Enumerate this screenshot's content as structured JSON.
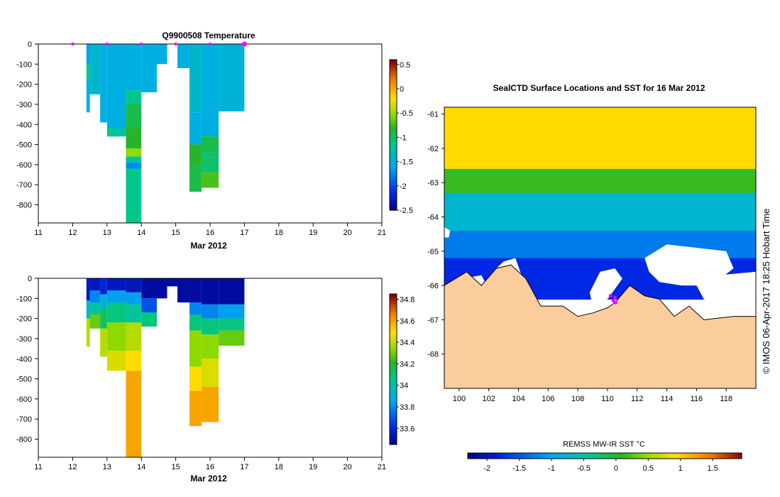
{
  "chart_data": [
    {
      "id": "temperature",
      "type": "heatmap",
      "title": "Q9900508  Temperature",
      "xlabel": "Mar 2012",
      "ylabel": "",
      "xlim": [
        11,
        21
      ],
      "ylim": [
        -890,
        0
      ],
      "x_ticks": [
        "11",
        "12",
        "13",
        "14",
        "15",
        "16",
        "17",
        "18",
        "19",
        "20",
        "21"
      ],
      "y_ticks": [
        "0",
        "-100",
        "-200",
        "-300",
        "-400",
        "-500",
        "-600",
        "-700",
        "-800"
      ],
      "colorbar": {
        "min": -2.5,
        "max": 0.6,
        "ticks": [
          "0.5",
          "0",
          "-0.5",
          "-1",
          "-1.5",
          "-2",
          "-2.5"
        ]
      },
      "profile_markers_x": [
        12,
        13,
        14,
        15,
        16,
        17
      ],
      "profiles": [
        {
          "x0": 12.4,
          "x1": 12.5,
          "depth": 340,
          "layers": [
            [
              0,
              100,
              -1.6
            ],
            [
              100,
              180,
              -1.1
            ],
            [
              180,
              340,
              -1.5
            ]
          ]
        },
        {
          "x0": 12.5,
          "x1": 12.8,
          "depth": 250,
          "layers": [
            [
              0,
              250,
              -1.4
            ]
          ]
        },
        {
          "x0": 12.8,
          "x1": 13.0,
          "depth": 390,
          "layers": [
            [
              0,
              390,
              -1.5
            ]
          ]
        },
        {
          "x0": 13.0,
          "x1": 13.2,
          "depth": 460,
          "layers": [
            [
              0,
              420,
              -1.5
            ],
            [
              420,
              460,
              -1.1
            ]
          ]
        },
        {
          "x0": 13.2,
          "x1": 13.55,
          "depth": 460,
          "layers": [
            [
              0,
              420,
              -1.5
            ],
            [
              420,
              460,
              -1.2
            ]
          ]
        },
        {
          "x0": 13.55,
          "x1": 14.0,
          "depth": 890,
          "layers": [
            [
              0,
              230,
              -1.5
            ],
            [
              230,
              300,
              -1.1
            ],
            [
              300,
              420,
              -0.9
            ],
            [
              420,
              520,
              -0.8
            ],
            [
              520,
              560,
              -0.5
            ],
            [
              560,
              590,
              -1.2
            ],
            [
              590,
              620,
              -1.7
            ],
            [
              620,
              890,
              -1.1
            ]
          ]
        },
        {
          "x0": 14.0,
          "x1": 14.45,
          "depth": 240,
          "layers": [
            [
              0,
              240,
              -1.5
            ]
          ]
        },
        {
          "x0": 14.45,
          "x1": 14.75,
          "depth": 100,
          "layers": [
            [
              0,
              100,
              -1.5
            ]
          ]
        },
        {
          "x0": 15.05,
          "x1": 15.4,
          "depth": 120,
          "layers": [
            [
              0,
              120,
              -1.5
            ]
          ]
        },
        {
          "x0": 15.4,
          "x1": 15.75,
          "depth": 735,
          "layers": [
            [
              0,
              340,
              -1.4
            ],
            [
              340,
              500,
              -1.5
            ],
            [
              500,
              600,
              -0.8
            ],
            [
              600,
              735,
              -0.9
            ]
          ]
        },
        {
          "x0": 15.75,
          "x1": 16.25,
          "depth": 715,
          "layers": [
            [
              0,
              330,
              -1.5
            ],
            [
              330,
              460,
              -1.5
            ],
            [
              460,
              540,
              -0.9
            ],
            [
              540,
              640,
              -1.0
            ],
            [
              640,
              715,
              -0.7
            ]
          ]
        },
        {
          "x0": 16.25,
          "x1": 17.0,
          "depth": 335,
          "layers": [
            [
              0,
              335,
              -1.45
            ]
          ]
        }
      ]
    },
    {
      "id": "salinity",
      "type": "heatmap",
      "title": "",
      "xlabel": "Mar 2012",
      "ylabel": "",
      "xlim": [
        11,
        21
      ],
      "ylim": [
        -890,
        0
      ],
      "x_ticks": [
        "11",
        "12",
        "13",
        "14",
        "15",
        "16",
        "17",
        "18",
        "19",
        "20",
        "21"
      ],
      "y_ticks": [
        "0",
        "-100",
        "-200",
        "-300",
        "-400",
        "-500",
        "-600",
        "-700",
        "-800"
      ],
      "colorbar": {
        "min": 33.45,
        "max": 34.85,
        "ticks": [
          "34.8",
          "34.6",
          "34.4",
          "34.2",
          "34",
          "33.8",
          "33.6"
        ]
      },
      "profiles": [
        {
          "x0": 12.4,
          "x1": 12.5,
          "depth": 340,
          "layers": [
            [
              0,
              110,
              33.55
            ],
            [
              110,
              200,
              33.95
            ],
            [
              200,
              340,
              34.4
            ]
          ]
        },
        {
          "x0": 12.5,
          "x1": 12.8,
          "depth": 250,
          "layers": [
            [
              0,
              60,
              33.55
            ],
            [
              60,
              120,
              33.8
            ],
            [
              120,
              180,
              34.05
            ],
            [
              180,
              250,
              34.3
            ]
          ]
        },
        {
          "x0": 12.8,
          "x1": 13.0,
          "depth": 390,
          "layers": [
            [
              0,
              80,
              33.6
            ],
            [
              80,
              150,
              33.9
            ],
            [
              150,
              250,
              34.15
            ],
            [
              250,
              390,
              34.4
            ]
          ]
        },
        {
          "x0": 13.0,
          "x1": 13.55,
          "depth": 460,
          "layers": [
            [
              0,
              60,
              33.55
            ],
            [
              60,
              120,
              33.85
            ],
            [
              120,
              220,
              34.1
            ],
            [
              220,
              360,
              34.35
            ],
            [
              360,
              460,
              34.45
            ]
          ]
        },
        {
          "x0": 13.55,
          "x1": 14.0,
          "depth": 890,
          "layers": [
            [
              0,
              70,
              33.55
            ],
            [
              70,
              130,
              33.85
            ],
            [
              130,
              220,
              34.05
            ],
            [
              220,
              360,
              34.4
            ],
            [
              360,
              460,
              34.5
            ],
            [
              460,
              890,
              34.6
            ]
          ]
        },
        {
          "x0": 14.0,
          "x1": 14.45,
          "depth": 240,
          "layers": [
            [
              0,
              100,
              33.5
            ],
            [
              100,
              170,
              33.7
            ],
            [
              170,
              240,
              34.1
            ]
          ]
        },
        {
          "x0": 14.45,
          "x1": 14.75,
          "depth": 100,
          "layers": [
            [
              0,
              100,
              33.5
            ]
          ]
        },
        {
          "x0": 14.75,
          "x1": 15.05,
          "depth": 40,
          "layers": [
            [
              0,
              40,
              33.5
            ]
          ]
        },
        {
          "x0": 15.05,
          "x1": 15.4,
          "depth": 120,
          "layers": [
            [
              0,
              120,
              33.5
            ]
          ]
        },
        {
          "x0": 15.4,
          "x1": 15.75,
          "depth": 735,
          "layers": [
            [
              0,
              120,
              33.5
            ],
            [
              120,
              180,
              33.8
            ],
            [
              180,
              260,
              34.1
            ],
            [
              260,
              440,
              34.35
            ],
            [
              440,
              560,
              34.5
            ],
            [
              560,
              735,
              34.6
            ]
          ]
        },
        {
          "x0": 15.75,
          "x1": 16.25,
          "depth": 715,
          "layers": [
            [
              0,
              130,
              33.5
            ],
            [
              130,
              200,
              33.8
            ],
            [
              200,
              280,
              34.1
            ],
            [
              280,
              400,
              34.35
            ],
            [
              400,
              540,
              34.45
            ],
            [
              540,
              715,
              34.6
            ]
          ]
        },
        {
          "x0": 16.25,
          "x1": 17.0,
          "depth": 335,
          "layers": [
            [
              0,
              130,
              33.5
            ],
            [
              130,
              200,
              33.85
            ],
            [
              200,
              260,
              34.1
            ],
            [
              260,
              335,
              34.3
            ]
          ]
        }
      ]
    },
    {
      "id": "sst_map",
      "type": "heatmap",
      "title": "SealCTD Surface Locations and SST for 16 Mar 2012",
      "xlabel": "",
      "ylabel": "",
      "xlim": [
        99,
        120
      ],
      "ylim": [
        -69.0,
        -60.8
      ],
      "x_ticks": [
        "100",
        "102",
        "104",
        "106",
        "108",
        "110",
        "112",
        "114",
        "116",
        "118"
      ],
      "y_ticks": [
        "-61",
        "-62",
        "-63",
        "-64",
        "-65",
        "-66",
        "-67",
        "-68"
      ],
      "colorbar": {
        "label": "REMSS MW-IR SST °C",
        "min": -2.3,
        "max": 1.95,
        "ticks": [
          "-2",
          "-1.5",
          "-1",
          "-0.5",
          "0",
          "0.5",
          "1",
          "1.5"
        ]
      },
      "sst_bands": [
        [
          -60.8,
          -62.6,
          0.9
        ],
        [
          -62.6,
          -63.3,
          0.1
        ],
        [
          -63.3,
          -64.4,
          -0.8
        ],
        [
          -64.4,
          -65.2,
          -1.3
        ],
        [
          -65.2,
          -66.4,
          -1.8
        ]
      ],
      "coastline": [
        [
          99,
          -66.0
        ],
        [
          100.5,
          -65.6
        ],
        [
          101.5,
          -66.0
        ],
        [
          102.5,
          -65.5
        ],
        [
          103.5,
          -65.4
        ],
        [
          104.5,
          -65.8
        ],
        [
          105.5,
          -66.6
        ],
        [
          107,
          -66.6
        ],
        [
          108,
          -66.9
        ],
        [
          109,
          -66.8
        ],
        [
          110,
          -66.65
        ],
        [
          110.5,
          -66.5
        ],
        [
          111.5,
          -66.0
        ],
        [
          112.5,
          -66.3
        ],
        [
          113.5,
          -66.4
        ],
        [
          114.5,
          -66.9
        ],
        [
          115.5,
          -66.6
        ],
        [
          116.5,
          -67.0
        ],
        [
          117.5,
          -66.95
        ],
        [
          118.5,
          -66.9
        ],
        [
          120,
          -66.9
        ]
      ],
      "clouds": [
        [
          [
            102.5,
            -65.5
          ],
          [
            103,
            -65.3
          ],
          [
            103.8,
            -65.2
          ],
          [
            104.2,
            -65.7
          ],
          [
            103.5,
            -66
          ],
          [
            102.8,
            -65.9
          ]
        ],
        [
          [
            100.2,
            -65.8
          ],
          [
            101.5,
            -65.7
          ],
          [
            102,
            -66.1
          ],
          [
            100.5,
            -66.0
          ]
        ],
        [
          [
            108.8,
            -66.2
          ],
          [
            109.5,
            -65.6
          ],
          [
            110.5,
            -65.5
          ],
          [
            111,
            -65.8
          ],
          [
            110,
            -66.4
          ],
          [
            109,
            -66.6
          ]
        ],
        [
          [
            112.5,
            -65.2
          ],
          [
            114,
            -64.8
          ],
          [
            116,
            -64.9
          ],
          [
            118,
            -65.0
          ],
          [
            118.5,
            -65.5
          ],
          [
            117,
            -66.0
          ],
          [
            115,
            -66.0
          ],
          [
            113.5,
            -65.9
          ],
          [
            112.8,
            -65.6
          ]
        ],
        [
          [
            116,
            -66.0
          ],
          [
            117.5,
            -65.7
          ],
          [
            120,
            -65.6
          ],
          [
            120,
            -66.4
          ],
          [
            118.5,
            -66.7
          ],
          [
            116.5,
            -66.4
          ]
        ],
        [
          [
            99,
            -64.3
          ],
          [
            99.4,
            -64.4
          ],
          [
            99.3,
            -64.6
          ],
          [
            99,
            -64.6
          ]
        ]
      ],
      "track_points": [
        [
          110.2,
          -66.3
        ],
        [
          110.5,
          -66.35
        ],
        [
          110.4,
          -66.45
        ],
        [
          110.55,
          -66.5
        ]
      ]
    }
  ],
  "footer": {
    "copyright": "© IMOS 06-Apr-2017 18:25 Hobart Time"
  }
}
